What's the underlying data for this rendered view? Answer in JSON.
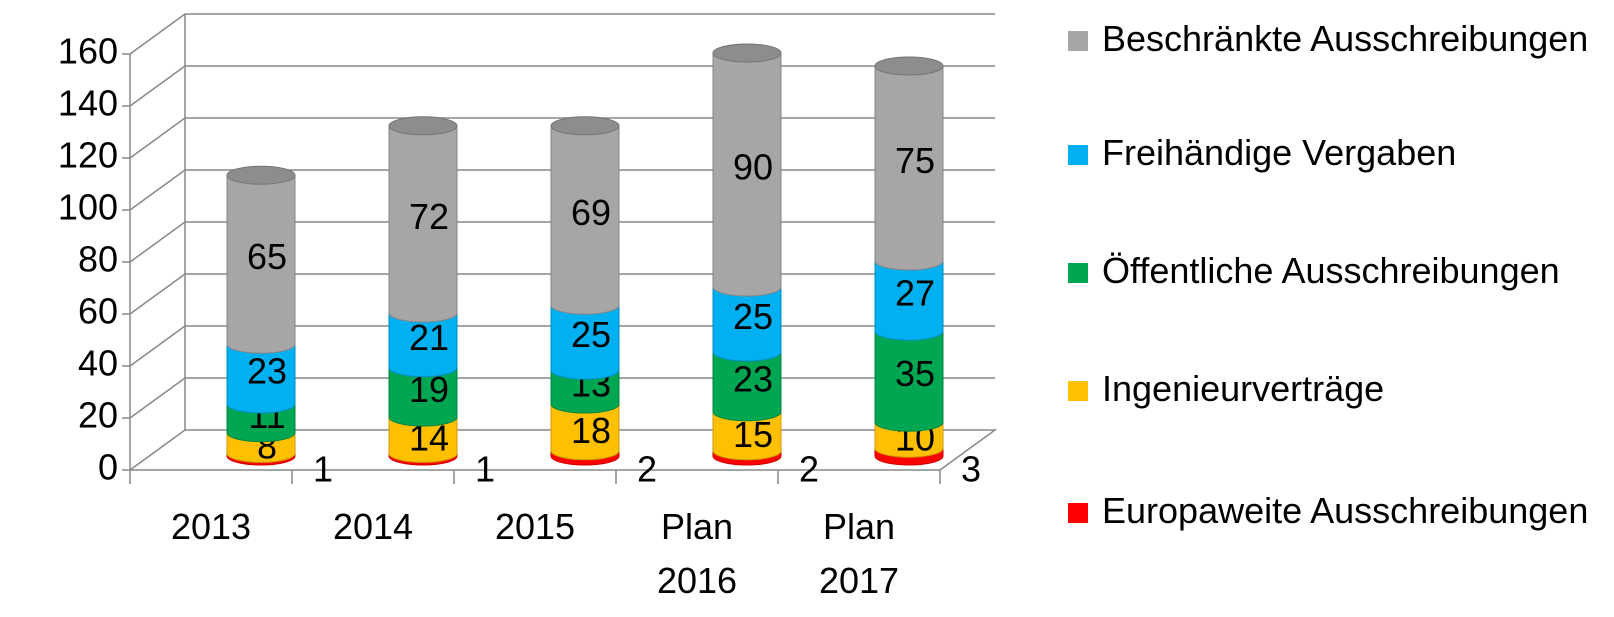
{
  "chart_data": {
    "type": "bar",
    "stacked": true,
    "categories": [
      "2013",
      "2014",
      "2015",
      "Plan 2016",
      "Plan 2017"
    ],
    "series": [
      {
        "name": "Europaweite Ausschreibungen",
        "color": "#ff0000",
        "values": [
          1,
          1,
          2,
          2,
          3
        ]
      },
      {
        "name": "Ingenieurverträge",
        "color": "#ffc000",
        "values": [
          8,
          14,
          18,
          15,
          10
        ]
      },
      {
        "name": "Öffentliche Ausschreibungen",
        "color": "#00a651",
        "values": [
          11,
          19,
          13,
          23,
          35
        ]
      },
      {
        "name": "Freihändige Vergaben",
        "color": "#00b0f0",
        "values": [
          23,
          21,
          25,
          25,
          27
        ]
      },
      {
        "name": "Beschränkte Ausschreibungen",
        "color": "#a6a6a6",
        "values": [
          65,
          72,
          69,
          90,
          75
        ]
      }
    ],
    "ylim": [
      0,
      160
    ],
    "yticks": [
      0,
      20,
      40,
      60,
      80,
      100,
      120,
      140,
      160
    ],
    "grid": true
  }
}
